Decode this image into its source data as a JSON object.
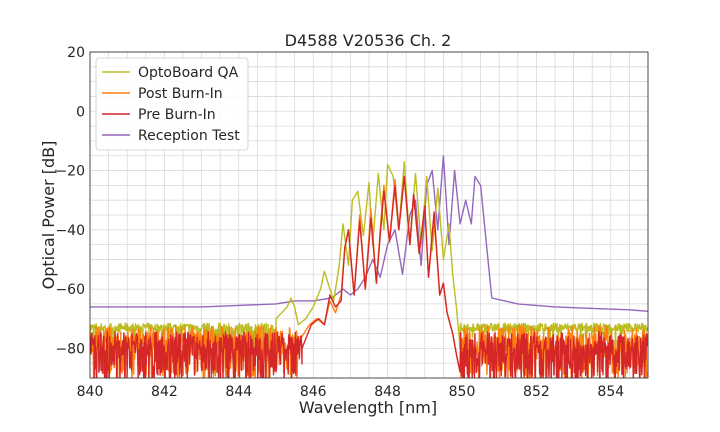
{
  "chart_data": {
    "type": "line",
    "title": "D4588 V20536 Ch. 2",
    "xlabel": "Wavelength [nm]",
    "ylabel": "Optical Power [dB]",
    "xlim": [
      840,
      855
    ],
    "ylim": [
      -90,
      20
    ],
    "xticks": [
      840,
      842,
      844,
      846,
      848,
      850,
      852,
      854
    ],
    "xtick_labels": [
      "840",
      "842",
      "844",
      "846",
      "848",
      "850",
      "852",
      "854"
    ],
    "yticks": [
      -80,
      -60,
      -40,
      -20,
      0,
      20
    ],
    "ytick_labels": [
      "−80",
      "−60",
      "−40",
      "−20",
      "0",
      "20"
    ],
    "grid": true,
    "legend_position": "top-left",
    "series": [
      {
        "name": "OptoBoard QA",
        "color": "#bcbd22",
        "noise_floor": -73,
        "noise_x_range": [
          840,
          845.0
        ],
        "x": [
          845.0,
          845.3,
          845.4,
          845.5,
          845.6,
          845.8,
          846.0,
          846.2,
          846.3,
          846.45,
          846.55,
          846.7,
          846.8,
          846.95,
          847.05,
          847.2,
          847.35,
          847.5,
          847.6,
          847.75,
          847.9,
          848.0,
          848.15,
          848.3,
          848.45,
          848.6,
          848.75,
          848.9,
          849.05,
          849.2,
          849.35,
          849.5,
          849.65,
          849.75,
          849.85,
          849.95
        ],
        "y": [
          -70,
          -66,
          -63,
          -66,
          -72,
          -70,
          -66,
          -60,
          -54,
          -60,
          -64,
          -52,
          -38,
          -52,
          -30,
          -27,
          -42,
          -24,
          -45,
          -21,
          -40,
          -18,
          -22,
          -40,
          -17,
          -45,
          -21,
          -45,
          -22,
          -47,
          -26,
          -50,
          -38,
          -55,
          -66,
          -80
        ]
      },
      {
        "name": "Post Burn-In",
        "color": "#ff7f0e",
        "noise_floor": -78,
        "noise_x_range": [
          840,
          845.6
        ],
        "x": [
          845.6,
          845.9,
          846.1,
          846.3,
          846.45,
          846.6,
          846.75,
          846.85,
          846.95,
          847.1,
          847.25,
          847.4,
          847.55,
          847.7,
          847.8,
          847.9,
          848.05,
          848.2,
          848.3,
          848.45,
          848.6,
          848.7,
          848.85,
          849.0,
          849.1,
          849.25,
          849.4,
          849.5,
          849.6,
          849.75,
          849.85,
          849.95
        ],
        "y": [
          -78,
          -72,
          -70,
          -72,
          -64,
          -68,
          -62,
          -46,
          -40,
          -62,
          -35,
          -60,
          -33,
          -58,
          -40,
          -25,
          -44,
          -23,
          -40,
          -22,
          -45,
          -28,
          -48,
          -32,
          -56,
          -36,
          -62,
          -58,
          -68,
          -75,
          -82,
          -88
        ]
      },
      {
        "name": "Pre Burn-In",
        "color": "#d62728",
        "noise_floor": -80,
        "noise_x_range": [
          840,
          845.7
        ],
        "x": [
          845.7,
          845.95,
          846.15,
          846.3,
          846.45,
          846.6,
          846.75,
          846.85,
          846.95,
          847.1,
          847.25,
          847.4,
          847.55,
          847.7,
          847.8,
          847.9,
          848.05,
          848.2,
          848.3,
          848.45,
          848.6,
          848.7,
          848.85,
          849.0,
          849.1,
          849.25,
          849.4,
          849.5,
          849.6,
          849.75,
          849.85,
          849.95
        ],
        "y": [
          -80,
          -72,
          -70,
          -72,
          -62,
          -66,
          -64,
          -46,
          -40,
          -62,
          -37,
          -60,
          -36,
          -58,
          -42,
          -27,
          -44,
          -25,
          -40,
          -22,
          -45,
          -28,
          -48,
          -32,
          -56,
          -34,
          -62,
          -58,
          -68,
          -75,
          -82,
          -88
        ]
      },
      {
        "name": "Reception Test",
        "color": "#9467bd",
        "x": [
          840,
          841,
          842,
          843,
          844,
          845,
          845.5,
          846.0,
          846.5,
          846.8,
          847.0,
          847.2,
          847.4,
          847.6,
          847.8,
          848.0,
          848.2,
          848.4,
          848.6,
          848.75,
          848.9,
          849.05,
          849.2,
          849.35,
          849.5,
          849.65,
          849.8,
          849.95,
          850.1,
          850.25,
          850.35,
          850.5,
          850.8,
          851.5,
          852.5,
          853.5,
          854.5,
          855
        ],
        "y": [
          -66,
          -66,
          -66,
          -66,
          -65.5,
          -65,
          -64,
          -64,
          -63,
          -60,
          -62,
          -60,
          -56,
          -50,
          -56,
          -45,
          -40,
          -55,
          -35,
          -30,
          -52,
          -25,
          -20,
          -40,
          -15,
          -45,
          -20,
          -38,
          -30,
          -38,
          -22,
          -25,
          -63,
          -65,
          -66,
          -66.5,
          -67,
          -67.5
        ]
      }
    ]
  }
}
